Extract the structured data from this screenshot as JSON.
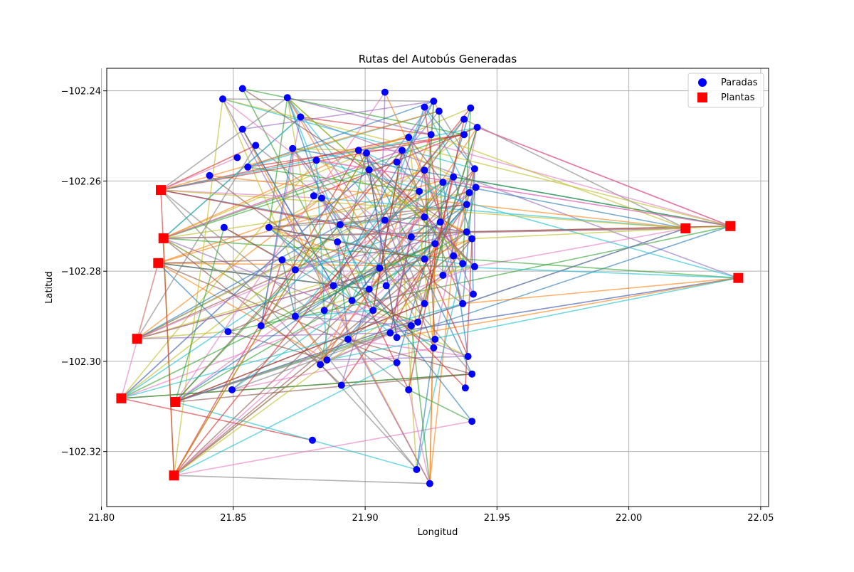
{
  "chart_data": {
    "type": "scatter",
    "title": "Rutas del Autobús Generadas",
    "xlabel": "Longitud",
    "ylabel": "Latitud",
    "xlim": [
      21.802,
      22.053
    ],
    "ylim": [
      -102.3322,
      -102.235
    ],
    "xticks": [
      21.8,
      21.85,
      21.9,
      21.95,
      22.0,
      22.05
    ],
    "xtick_labels": [
      "21.80",
      "21.85",
      "21.90",
      "21.95",
      "22.00",
      "22.05"
    ],
    "yticks": [
      -102.24,
      -102.26,
      -102.28,
      -102.3,
      -102.32
    ],
    "ytick_labels": [
      "−102.24",
      "−102.26",
      "−102.28",
      "−102.30",
      "−102.32"
    ],
    "grid": true,
    "legend_position": "top-right",
    "legend": [
      {
        "label": "Paradas",
        "marker": "circle",
        "color": "#0000ff"
      },
      {
        "label": "Plantas",
        "marker": "square",
        "color": "#ff0000"
      }
    ],
    "series": [
      {
        "name": "Paradas",
        "marker": "circle",
        "color": "#0000ff",
        "points": [
          [
            21.8535,
            -102.2395
          ],
          [
            21.846,
            -102.2418
          ],
          [
            21.8705,
            -102.2415
          ],
          [
            21.9075,
            -102.2403
          ],
          [
            21.926,
            -102.2423
          ],
          [
            21.9225,
            -102.2436
          ],
          [
            21.928,
            -102.2445
          ],
          [
            21.94,
            -102.2438
          ],
          [
            21.8755,
            -102.2458
          ],
          [
            21.9375,
            -102.2463
          ],
          [
            21.9425,
            -102.2481
          ],
          [
            21.8535,
            -102.2485
          ],
          [
            21.925,
            -102.2497
          ],
          [
            21.9375,
            -102.2497
          ],
          [
            21.9165,
            -102.2503
          ],
          [
            21.8585,
            -102.2521
          ],
          [
            21.8725,
            -102.2528
          ],
          [
            21.8975,
            -102.2532
          ],
          [
            21.9005,
            -102.2538
          ],
          [
            21.914,
            -102.2532
          ],
          [
            21.8515,
            -102.2548
          ],
          [
            21.912,
            -102.2558
          ],
          [
            21.8815,
            -102.2554
          ],
          [
            21.8555,
            -102.2569
          ],
          [
            21.9015,
            -102.2575
          ],
          [
            21.9225,
            -102.2576
          ],
          [
            21.9415,
            -102.2573
          ],
          [
            21.9335,
            -102.2591
          ],
          [
            21.841,
            -102.2588
          ],
          [
            21.9295,
            -102.2603
          ],
          [
            21.942,
            -102.2614
          ],
          [
            21.9395,
            -102.2626
          ],
          [
            21.9205,
            -102.2623
          ],
          [
            21.8805,
            -102.2633
          ],
          [
            21.8835,
            -102.2638
          ],
          [
            21.9385,
            -102.2652
          ],
          [
            21.9225,
            -102.268
          ],
          [
            21.9075,
            -102.2687
          ],
          [
            21.9285,
            -102.2691
          ],
          [
            21.8465,
            -102.2703
          ],
          [
            21.8635,
            -102.2703
          ],
          [
            21.8905,
            -102.2697
          ],
          [
            21.9385,
            -102.2713
          ],
          [
            21.9175,
            -102.2724
          ],
          [
            21.8895,
            -102.2735
          ],
          [
            21.9265,
            -102.2739
          ],
          [
            21.9405,
            -102.2728
          ],
          [
            21.9335,
            -102.2766
          ],
          [
            21.9225,
            -102.2773
          ],
          [
            21.8685,
            -102.2775
          ],
          [
            21.937,
            -102.2783
          ],
          [
            21.9415,
            -102.279
          ],
          [
            21.9055,
            -102.2793
          ],
          [
            21.8735,
            -102.2797
          ],
          [
            21.9295,
            -102.2809
          ],
          [
            21.888,
            -102.2832
          ],
          [
            21.908,
            -102.2832
          ],
          [
            21.9015,
            -102.284
          ],
          [
            21.941,
            -102.2851
          ],
          [
            21.895,
            -102.2865
          ],
          [
            21.9225,
            -102.2872
          ],
          [
            21.937,
            -102.2872
          ],
          [
            21.8845,
            -102.2887
          ],
          [
            21.903,
            -102.2887
          ],
          [
            21.8735,
            -102.29
          ],
          [
            21.92,
            -102.2913
          ],
          [
            21.9175,
            -102.2921
          ],
          [
            21.8605,
            -102.2921
          ],
          [
            21.848,
            -102.2934
          ],
          [
            21.9095,
            -102.2937
          ],
          [
            21.912,
            -102.2947
          ],
          [
            21.8935,
            -102.2951
          ],
          [
            21.9265,
            -102.2951
          ],
          [
            21.926,
            -102.297
          ],
          [
            21.939,
            -102.2989
          ],
          [
            21.8855,
            -102.2997
          ],
          [
            21.912,
            -102.3003
          ],
          [
            21.883,
            -102.3007
          ],
          [
            21.9405,
            -102.3028
          ],
          [
            21.891,
            -102.3053
          ],
          [
            21.8495,
            -102.3063
          ],
          [
            21.9165,
            -102.3063
          ],
          [
            21.938,
            -102.3059
          ],
          [
            21.9405,
            -102.3133
          ],
          [
            21.88,
            -102.3175
          ],
          [
            21.9195,
            -102.324
          ],
          [
            21.9245,
            -102.3271
          ]
        ]
      },
      {
        "name": "Plantas",
        "marker": "square",
        "color": "#ff0000",
        "points": [
          [
            21.8225,
            -102.262
          ],
          [
            21.8235,
            -102.2727
          ],
          [
            21.8215,
            -102.2782
          ],
          [
            21.8135,
            -102.295
          ],
          [
            21.8075,
            -102.3082
          ],
          [
            21.828,
            -102.309
          ],
          [
            21.8275,
            -102.3253
          ],
          [
            22.0215,
            -102.2705
          ],
          [
            22.0385,
            -102.27
          ],
          [
            22.0415,
            -102.2815
          ]
        ]
      }
    ],
    "routes": {
      "count": 320,
      "colors": [
        "#1f77b4",
        "#ff7f0e",
        "#2ca02c",
        "#d62728",
        "#9467bd",
        "#8c564b",
        "#e377c2",
        "#7f7f7f",
        "#bcbd22",
        "#17becf"
      ],
      "opacity": 0.6
    }
  }
}
